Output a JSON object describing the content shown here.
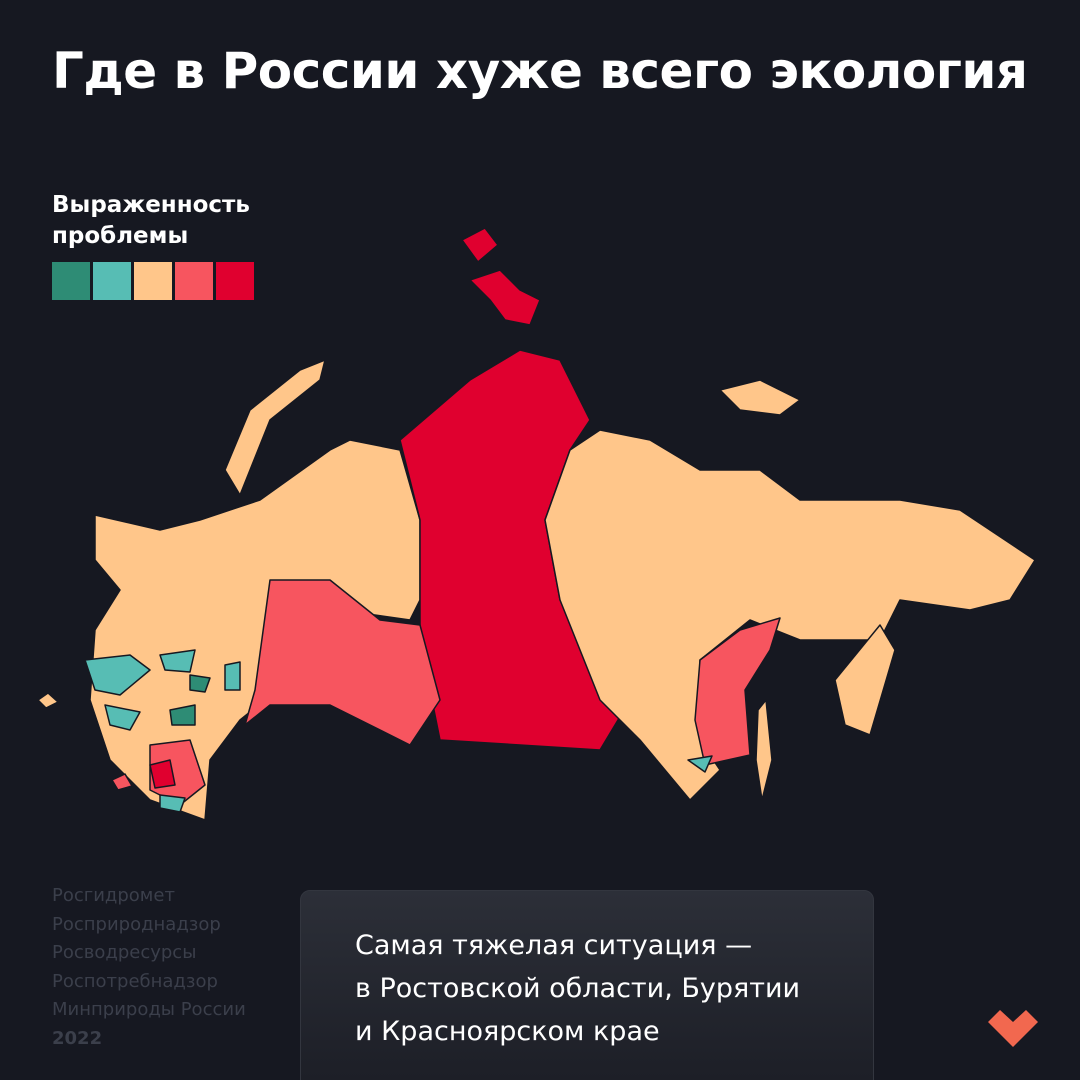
{
  "header": {
    "title": "Где в России хуже всего экология"
  },
  "legend": {
    "title_lines": [
      "Выраженность",
      "проблемы"
    ],
    "colors": [
      "#2e8c75",
      "#57bdb4",
      "#ffc68a",
      "#f7555f",
      "#e0002f"
    ]
  },
  "sources": {
    "items": [
      "Росгидромет",
      "Росприроднадзор",
      "Росводресурсы",
      "Роспотребнадзор",
      "Минприроды России"
    ],
    "year": "2022"
  },
  "callout": {
    "lines": [
      "Самая тяжелая ситуация —",
      "в Ростовской области, Бурятии",
      "и Красноярском крае"
    ]
  }
}
